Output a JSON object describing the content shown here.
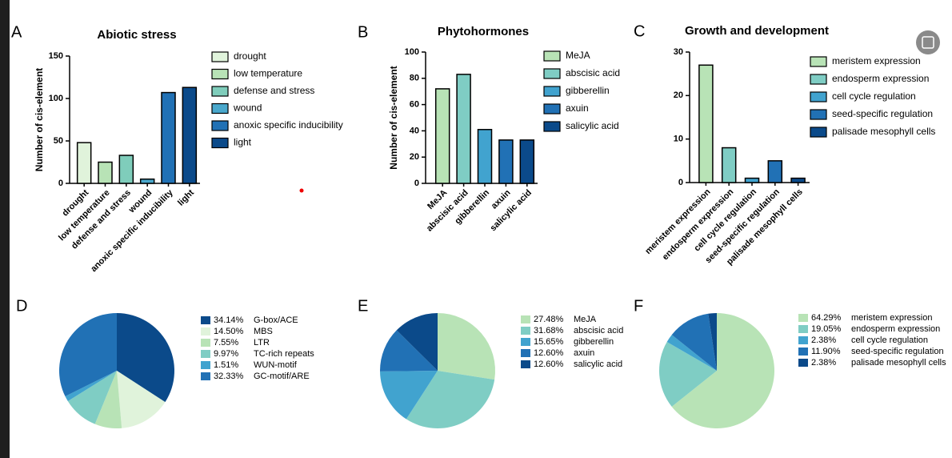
{
  "chart_data": [
    {
      "type": "bar",
      "panel": "A",
      "title": "Abiotic stress",
      "y_label": "Number of cis-element",
      "categories": [
        "drought",
        "low temperature",
        "defense and stress",
        "wound",
        "anoxic specific inducibility",
        "light"
      ],
      "values": [
        48,
        25,
        33,
        5,
        107,
        113
      ],
      "colors": [
        "#e0f3db",
        "#b8e3b6",
        "#7fcdbb",
        "#4aa8cc",
        "#2171b5",
        "#0b4a8a"
      ],
      "ylim": [
        0,
        150
      ],
      "yticks": [
        0,
        50,
        100,
        150
      ]
    },
    {
      "type": "bar",
      "panel": "B",
      "title": "Phytohormones",
      "y_label": "Number of cis-element",
      "categories": [
        "MeJA",
        "abscisic acid",
        "gibberellin",
        "axuin",
        "salicylic acid"
      ],
      "values": [
        72,
        83,
        41,
        33,
        33
      ],
      "colors": [
        "#b8e3b6",
        "#7fcdc4",
        "#41a3cf",
        "#2171b5",
        "#0b4a8a"
      ],
      "ylim": [
        0,
        100
      ],
      "yticks": [
        0,
        20,
        40,
        60,
        80,
        100
      ]
    },
    {
      "type": "bar",
      "panel": "C",
      "title": "Growth and development",
      "categories": [
        "meristem expression",
        "endosperm expression",
        "cell cycle regulation",
        "seed-specific regulation",
        "palisade mesophyll cells"
      ],
      "values": [
        27,
        8,
        1,
        5,
        1
      ],
      "colors": [
        "#b8e3b6",
        "#7fcdc4",
        "#41a3cf",
        "#2171b5",
        "#0b4a8a"
      ],
      "ylim": [
        0,
        30
      ],
      "yticks": [
        0,
        10,
        20,
        30
      ]
    },
    {
      "type": "pie",
      "panel": "D",
      "labels": [
        "G-box/ACE",
        "MBS",
        "LTR",
        "TC-rich repeats",
        "WUN-motif",
        "GC-motif/ARE"
      ],
      "values": [
        34.14,
        14.5,
        7.55,
        9.97,
        1.51,
        32.33
      ],
      "value_labels": [
        "34.14%",
        "14.50%",
        "7.55%",
        "9.97%",
        "1.51%",
        "32.33%"
      ],
      "colors": [
        "#0b4a8a",
        "#e0f3db",
        "#b8e3b6",
        "#7fcdc4",
        "#41a3cf",
        "#2171b5"
      ]
    },
    {
      "type": "pie",
      "panel": "E",
      "labels": [
        "MeJA",
        "abscisic acid",
        "gibberellin",
        "axuin",
        "salicylic acid"
      ],
      "values": [
        27.48,
        31.68,
        15.65,
        12.6,
        12.6
      ],
      "value_labels": [
        "27.48%",
        "31.68%",
        "15.65%",
        "12.60%",
        "12.60%"
      ],
      "colors": [
        "#b8e3b6",
        "#7fcdc4",
        "#41a3cf",
        "#2171b5",
        "#0b4a8a"
      ]
    },
    {
      "type": "pie",
      "panel": "F",
      "labels": [
        "meristem expression",
        "endosperm expression",
        "cell cycle regulation",
        "seed-specific regulation",
        "palisade mesophyll cells"
      ],
      "values": [
        64.29,
        19.05,
        2.38,
        11.9,
        2.38
      ],
      "value_labels": [
        "64.29%",
        "19.05%",
        "2.38%",
        "11.90%",
        "2.38%"
      ],
      "colors": [
        "#b8e3b6",
        "#7fcdc4",
        "#41a3cf",
        "#2171b5",
        "#0b4a8a"
      ]
    }
  ]
}
